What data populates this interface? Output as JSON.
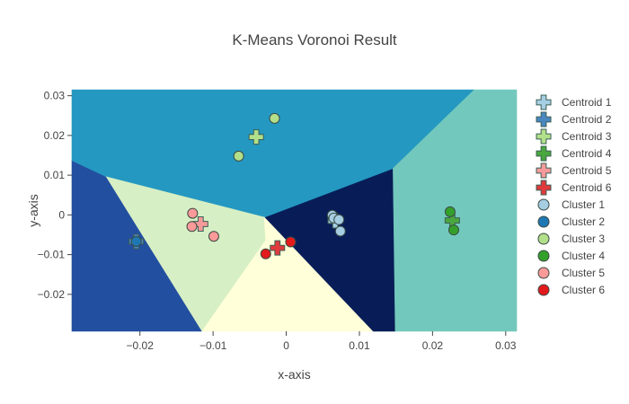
{
  "chart_data": {
    "type": "scatter",
    "title": "K-Means Voronoi Result",
    "xlabel": "x-axis",
    "ylabel": "y-axis",
    "xlim": [
      -0.0293,
      0.0315
    ],
    "ylim": [
      -0.0293,
      0.0315
    ],
    "x_ticks": [
      -0.02,
      -0.01,
      0,
      0.01,
      0.02,
      0.03
    ],
    "x_tick_labels": [
      "−0.02",
      "−0.01",
      "0",
      "0.01",
      "0.02",
      "0.03"
    ],
    "y_ticks": [
      -0.02,
      -0.01,
      0,
      0.01,
      0.02,
      0.03
    ],
    "y_tick_labels": [
      "−0.02",
      "−0.01",
      "0",
      "0.01",
      "0.02",
      "0.03"
    ],
    "grid": false,
    "legend_position": "right",
    "regions": [
      {
        "cluster": 1,
        "color": "#081d58",
        "vertices": [
          [
            -0.003,
            -0.0006
          ],
          [
            0.0146,
            0.0117
          ],
          [
            0.0149,
            -0.0293
          ],
          [
            0.0118,
            -0.0293
          ]
        ]
      },
      {
        "cluster": 2,
        "color": "#234fa0",
        "vertices": [
          [
            -0.0293,
            0.0137
          ],
          [
            -0.0246,
            0.0096
          ],
          [
            -0.0115,
            -0.0293
          ],
          [
            -0.0293,
            -0.0293
          ]
        ]
      },
      {
        "cluster": 3,
        "color": "#2498c1",
        "vertices": [
          [
            -0.0293,
            0.0315
          ],
          [
            0.0257,
            0.0315
          ],
          [
            0.0146,
            0.0117
          ],
          [
            -0.003,
            -0.0006
          ],
          [
            -0.0246,
            0.0096
          ],
          [
            -0.0293,
            0.0137
          ]
        ]
      },
      {
        "cluster": 4,
        "color": "#72c8bc",
        "vertices": [
          [
            0.0257,
            0.0315
          ],
          [
            0.0315,
            0.0315
          ],
          [
            0.0315,
            -0.0293
          ],
          [
            0.0149,
            -0.0293
          ],
          [
            0.0146,
            0.0117
          ]
        ]
      },
      {
        "cluster": 5,
        "color": "#d7efc4",
        "vertices": [
          [
            -0.0246,
            0.0096
          ],
          [
            -0.003,
            -0.0006
          ],
          [
            -0.0028,
            -0.0064
          ],
          [
            -0.0115,
            -0.0293
          ]
        ]
      },
      {
        "cluster": 6,
        "color": "#ffffd9",
        "vertices": [
          [
            -0.0028,
            -0.0064
          ],
          [
            -0.003,
            -0.0006
          ],
          [
            0.0118,
            -0.0293
          ],
          [
            -0.0115,
            -0.0293
          ]
        ]
      }
    ],
    "centroids": [
      {
        "name": "Centroid 1",
        "color": "#a6cee3",
        "x": 0.0067,
        "y": -0.0015
      },
      {
        "name": "Centroid 2",
        "color": "#4a87c0",
        "x": -0.0205,
        "y": -0.0067
      },
      {
        "name": "Centroid 3",
        "color": "#b2df8a",
        "x": -0.0041,
        "y": 0.0196
      },
      {
        "name": "Centroid 4",
        "color": "#4aa63e",
        "x": 0.0227,
        "y": -0.0014
      },
      {
        "name": "Centroid 5",
        "color": "#f59a9a",
        "x": -0.0117,
        "y": -0.0023
      },
      {
        "name": "Centroid 6",
        "color": "#e03a3c",
        "x": -0.0012,
        "y": -0.0083
      }
    ],
    "clusters": [
      {
        "name": "Cluster 1",
        "color": "#a6cee3",
        "x": [
          0.0063,
          0.0065,
          0.0072,
          0.0074
        ],
        "y": [
          -0.0001,
          -0.0008,
          -0.0012,
          -0.0041
        ]
      },
      {
        "name": "Cluster 2",
        "color": "#1f78b4",
        "x": [
          -0.0205
        ],
        "y": [
          -0.0067
        ]
      },
      {
        "name": "Cluster 3",
        "color": "#b2df8a",
        "x": [
          -0.0016,
          -0.0065
        ],
        "y": [
          0.0243,
          0.0148
        ]
      },
      {
        "name": "Cluster 4",
        "color": "#33a02c",
        "x": [
          0.0224,
          0.0229
        ],
        "y": [
          0.0008,
          -0.0038
        ]
      },
      {
        "name": "Cluster 5",
        "color": "#fb9a99",
        "x": [
          -0.0128,
          -0.0129,
          -0.0099
        ],
        "y": [
          0.0004,
          -0.0029,
          -0.0054
        ]
      },
      {
        "name": "Cluster 6",
        "color": "#e31a1c",
        "x": [
          -0.0028,
          0.0006
        ],
        "y": [
          -0.0098,
          -0.0068
        ]
      }
    ]
  }
}
